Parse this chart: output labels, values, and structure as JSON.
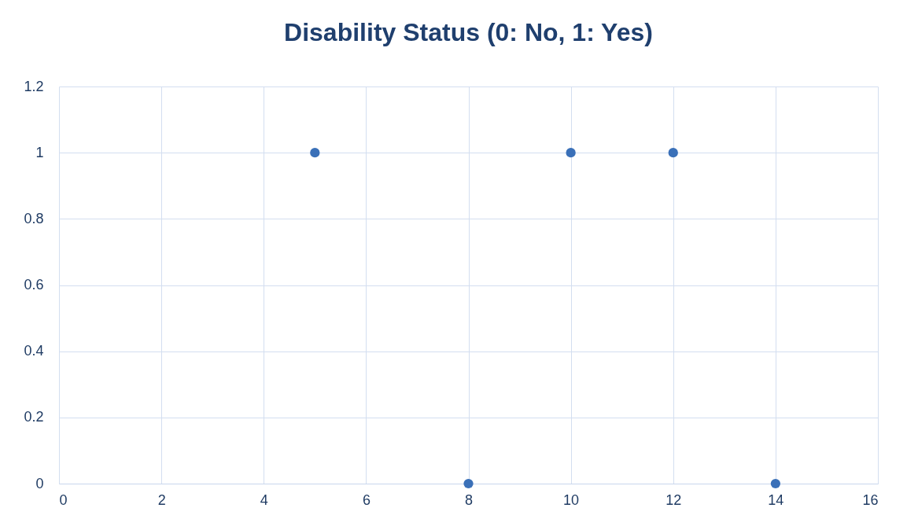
{
  "chart_data": {
    "type": "scatter",
    "title": "Disability Status (0: No, 1: Yes)",
    "x": [
      5,
      8,
      10,
      12,
      14
    ],
    "series": [
      {
        "color": "#3a70b8",
        "values": [
          1,
          0,
          1,
          1,
          0
        ]
      }
    ],
    "xlim": [
      0,
      16
    ],
    "xticks": [
      0,
      2,
      4,
      6,
      8,
      10,
      12,
      14,
      16
    ],
    "ylim": [
      0,
      1.2
    ],
    "yticks": [
      0,
      0.2,
      0.4,
      0.6,
      0.8,
      1,
      1.2
    ],
    "grid": true,
    "marker": "circle"
  }
}
